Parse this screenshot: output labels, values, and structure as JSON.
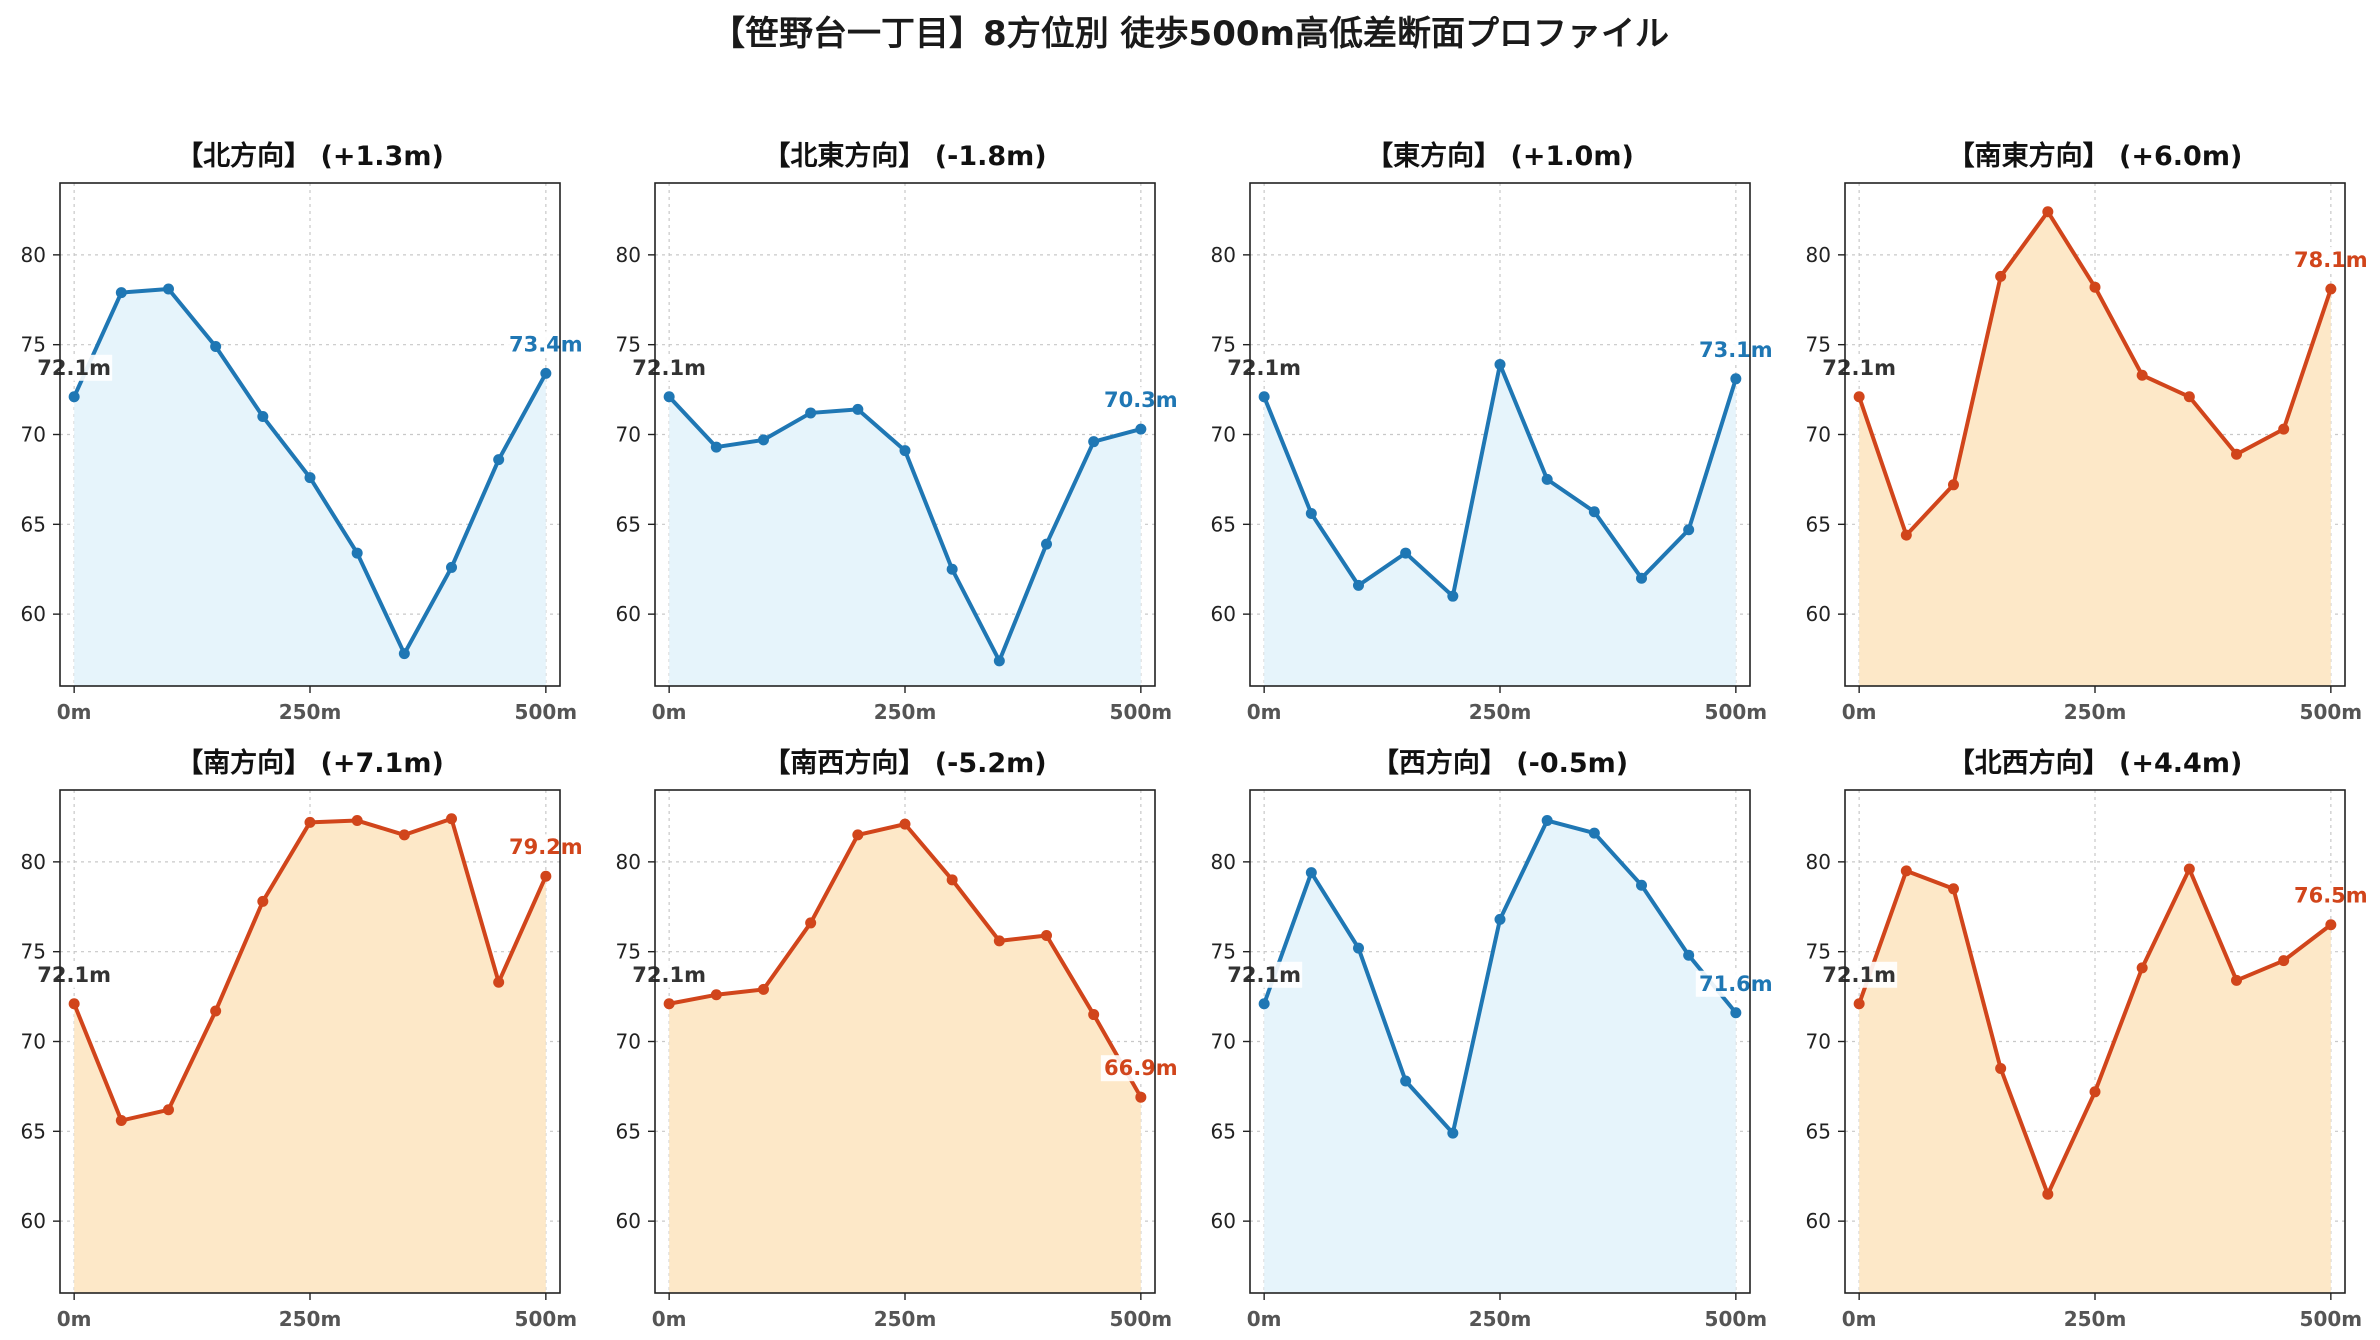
{
  "title": "【笹野台一丁目】8方位別 徒歩500m高低差断面プロファイル",
  "colors": {
    "down_line": "#1f77b4",
    "down_fill": "#e6f4fb",
    "up_line": "#d1451b",
    "up_fill": "#fde8c8",
    "start_label": "#333333"
  },
  "chart_data": [
    {
      "type": "area",
      "title": "【北方向】 (+1.3m)",
      "trend": "down",
      "x": [
        0,
        50,
        100,
        150,
        200,
        250,
        300,
        350,
        400,
        450,
        500
      ],
      "values": [
        72.1,
        77.9,
        78.1,
        74.9,
        71.0,
        67.6,
        63.4,
        57.8,
        62.6,
        68.6,
        73.4
      ],
      "start_label": "72.1m",
      "end_label": "73.4m",
      "xticks": [
        0,
        250,
        500
      ],
      "xtick_labels": [
        "0m",
        "250m",
        "500m"
      ],
      "yticks": [
        60,
        65,
        70,
        75,
        80
      ],
      "xlim": [
        -15,
        515
      ],
      "ylim": [
        56,
        84
      ],
      "grid": true
    },
    {
      "type": "area",
      "title": "【北東方向】 (-1.8m)",
      "trend": "down",
      "x": [
        0,
        50,
        100,
        150,
        200,
        250,
        300,
        350,
        400,
        450,
        500
      ],
      "values": [
        72.1,
        69.3,
        69.7,
        71.2,
        71.4,
        69.1,
        62.5,
        57.4,
        63.9,
        69.6,
        70.3
      ],
      "start_label": "72.1m",
      "end_label": "70.3m",
      "xticks": [
        0,
        250,
        500
      ],
      "xtick_labels": [
        "0m",
        "250m",
        "500m"
      ],
      "yticks": [
        60,
        65,
        70,
        75,
        80
      ],
      "xlim": [
        -15,
        515
      ],
      "ylim": [
        56,
        84
      ],
      "grid": true
    },
    {
      "type": "area",
      "title": "【東方向】 (+1.0m)",
      "trend": "down",
      "x": [
        0,
        50,
        100,
        150,
        200,
        250,
        300,
        350,
        400,
        450,
        500
      ],
      "values": [
        72.1,
        65.6,
        61.6,
        63.4,
        61.0,
        73.9,
        67.5,
        65.7,
        62.0,
        64.7,
        73.1
      ],
      "start_label": "72.1m",
      "end_label": "73.1m",
      "xticks": [
        0,
        250,
        500
      ],
      "xtick_labels": [
        "0m",
        "250m",
        "500m"
      ],
      "yticks": [
        60,
        65,
        70,
        75,
        80
      ],
      "xlim": [
        -15,
        515
      ],
      "ylim": [
        56,
        84
      ],
      "grid": true
    },
    {
      "type": "area",
      "title": "【南東方向】 (+6.0m)",
      "trend": "up",
      "x": [
        0,
        50,
        100,
        150,
        200,
        250,
        300,
        350,
        400,
        450,
        500
      ],
      "values": [
        72.1,
        64.4,
        67.2,
        78.8,
        82.4,
        78.2,
        73.3,
        72.1,
        68.9,
        70.3,
        78.1
      ],
      "start_label": "72.1m",
      "end_label": "78.1m",
      "xticks": [
        0,
        250,
        500
      ],
      "xtick_labels": [
        "0m",
        "250m",
        "500m"
      ],
      "yticks": [
        60,
        65,
        70,
        75,
        80
      ],
      "xlim": [
        -15,
        515
      ],
      "ylim": [
        56,
        84
      ],
      "grid": true
    },
    {
      "type": "area",
      "title": "【南方向】 (+7.1m)",
      "trend": "up",
      "x": [
        0,
        50,
        100,
        150,
        200,
        250,
        300,
        350,
        400,
        450,
        500
      ],
      "values": [
        72.1,
        65.6,
        66.2,
        71.7,
        77.8,
        82.2,
        82.3,
        81.5,
        82.4,
        73.3,
        79.2
      ],
      "start_label": "72.1m",
      "end_label": "79.2m",
      "xticks": [
        0,
        250,
        500
      ],
      "xtick_labels": [
        "0m",
        "250m",
        "500m"
      ],
      "yticks": [
        60,
        65,
        70,
        75,
        80
      ],
      "xlim": [
        -15,
        515
      ],
      "ylim": [
        56,
        84
      ],
      "grid": true
    },
    {
      "type": "area",
      "title": "【南西方向】 (-5.2m)",
      "trend": "up",
      "x": [
        0,
        50,
        100,
        150,
        200,
        250,
        300,
        350,
        400,
        450,
        500
      ],
      "values": [
        72.1,
        72.6,
        72.9,
        76.6,
        81.5,
        82.1,
        79.0,
        75.6,
        75.9,
        71.5,
        66.9
      ],
      "start_label": "72.1m",
      "end_label": "66.9m",
      "xticks": [
        0,
        250,
        500
      ],
      "xtick_labels": [
        "0m",
        "250m",
        "500m"
      ],
      "yticks": [
        60,
        65,
        70,
        75,
        80
      ],
      "xlim": [
        -15,
        515
      ],
      "ylim": [
        56,
        84
      ],
      "grid": true
    },
    {
      "type": "area",
      "title": "【西方向】 (-0.5m)",
      "trend": "down",
      "x": [
        0,
        50,
        100,
        150,
        200,
        250,
        300,
        350,
        400,
        450,
        500
      ],
      "values": [
        72.1,
        79.4,
        75.2,
        67.8,
        64.9,
        76.8,
        82.3,
        81.6,
        78.7,
        74.8,
        71.6
      ],
      "start_label": "72.1m",
      "end_label": "71.6m",
      "xticks": [
        0,
        250,
        500
      ],
      "xtick_labels": [
        "0m",
        "250m",
        "500m"
      ],
      "yticks": [
        60,
        65,
        70,
        75,
        80
      ],
      "xlim": [
        -15,
        515
      ],
      "ylim": [
        56,
        84
      ],
      "grid": true
    },
    {
      "type": "area",
      "title": "【北西方向】 (+4.4m)",
      "trend": "up",
      "x": [
        0,
        50,
        100,
        150,
        200,
        250,
        300,
        350,
        400,
        450,
        500
      ],
      "values": [
        72.1,
        79.5,
        78.5,
        68.5,
        61.5,
        67.2,
        74.1,
        79.6,
        73.4,
        74.5,
        76.5
      ],
      "start_label": "72.1m",
      "end_label": "76.5m",
      "xticks": [
        0,
        250,
        500
      ],
      "xtick_labels": [
        "0m",
        "250m",
        "500m"
      ],
      "yticks": [
        60,
        65,
        70,
        75,
        80
      ],
      "xlim": [
        -15,
        515
      ],
      "ylim": [
        56,
        84
      ],
      "grid": true
    }
  ]
}
